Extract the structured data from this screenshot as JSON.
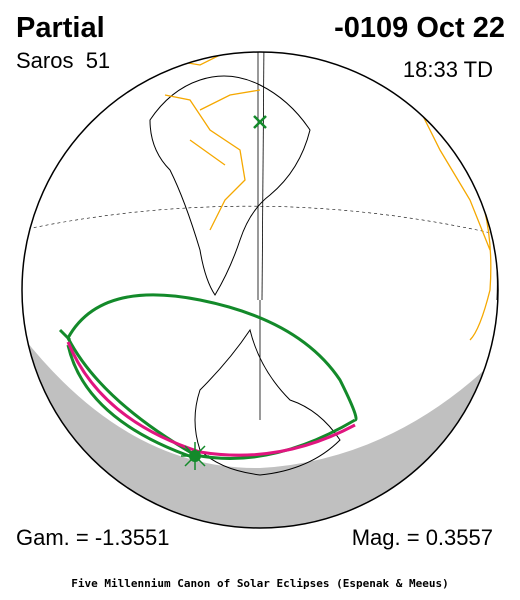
{
  "header": {
    "type": "Partial",
    "date": "-0109 Oct 22",
    "saros": "Saros  51",
    "time": "18:33 TD"
  },
  "footer": {
    "gamma": "Gam. = -1.3551",
    "magnitude": "Mag. = 0.3557",
    "credit": "Five Millennium Canon of Solar Eclipses (Espenak & Meeus)"
  }
}
